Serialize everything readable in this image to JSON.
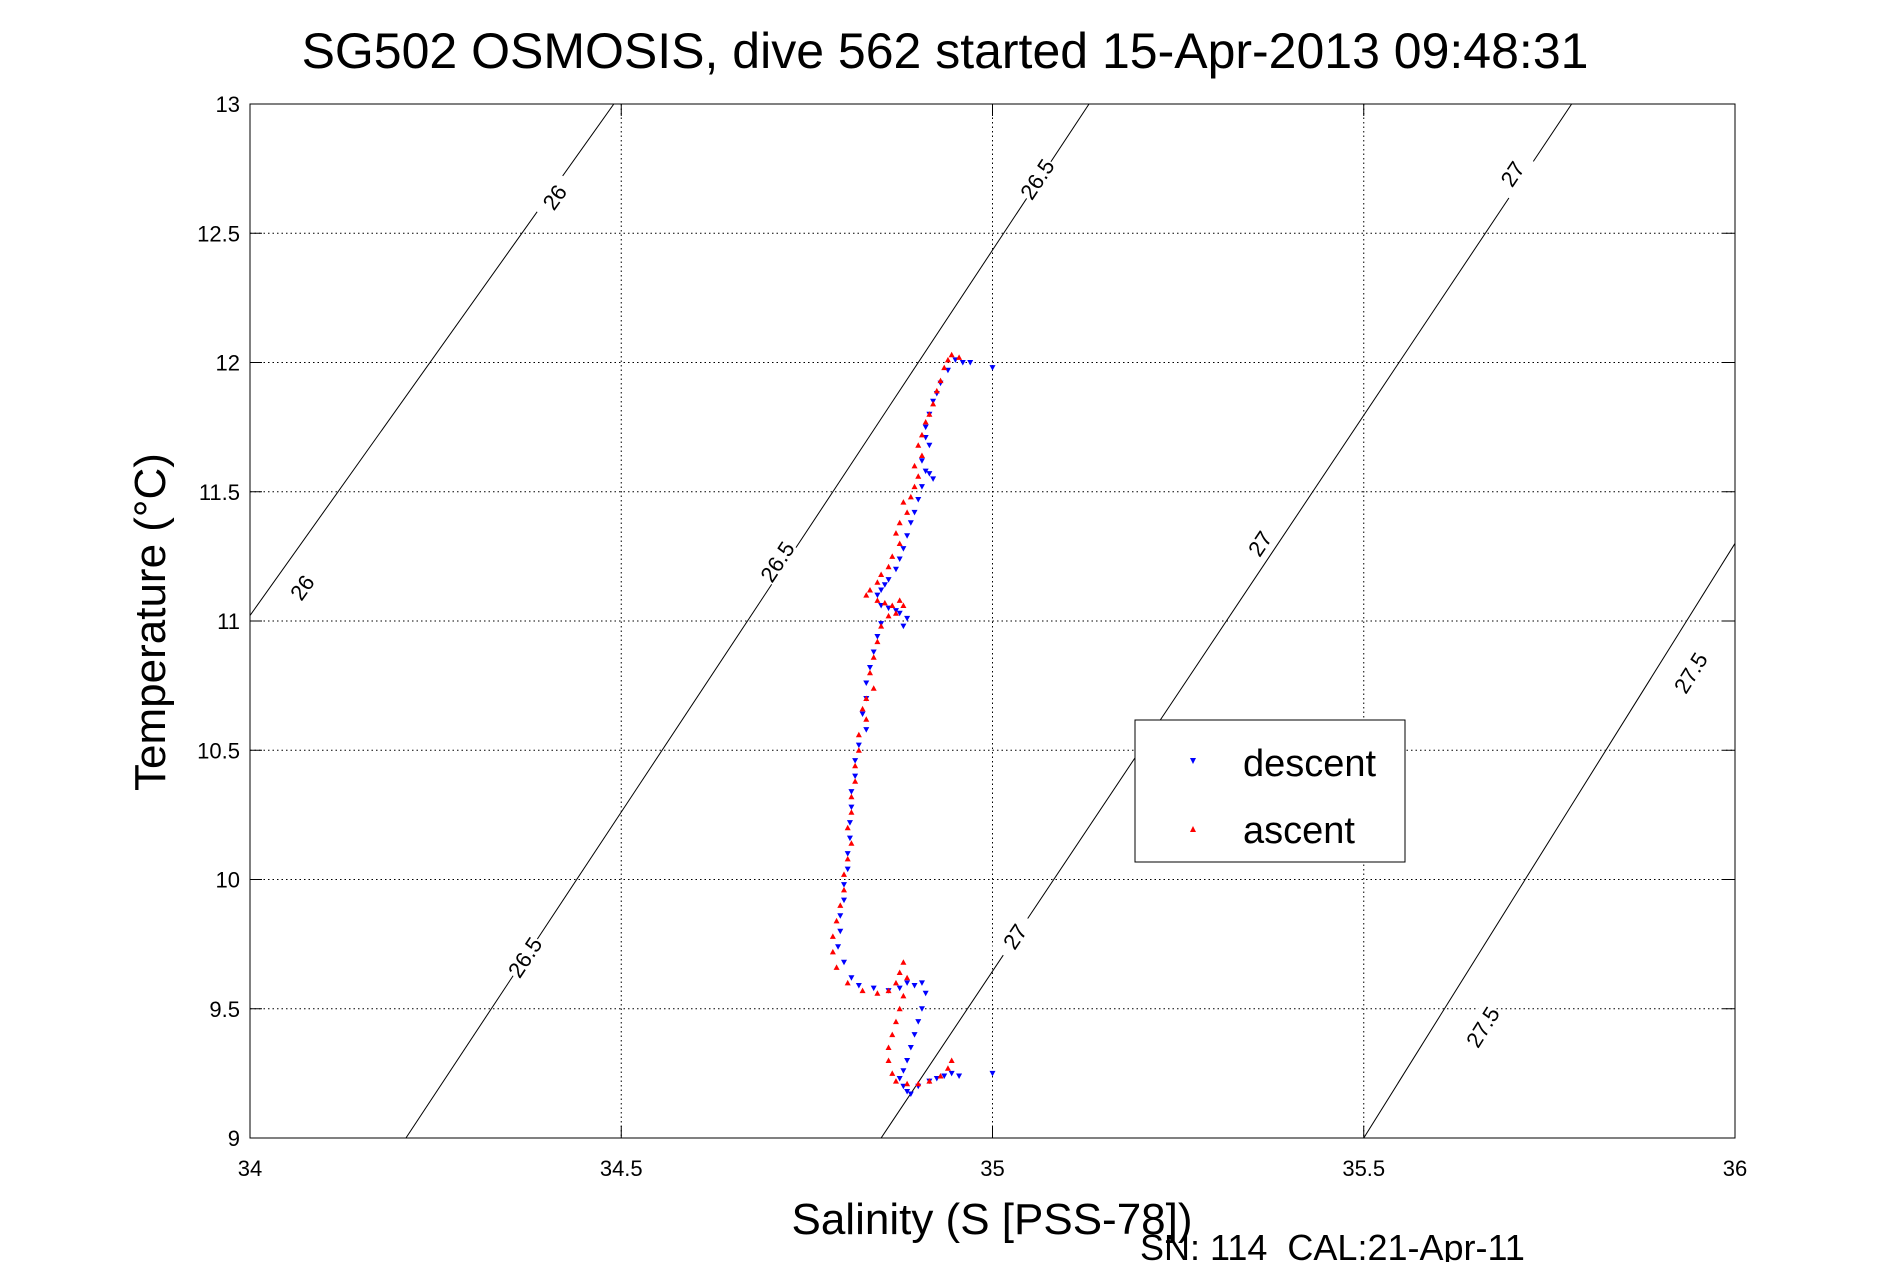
{
  "chart_data": {
    "type": "scatter",
    "title": "SG502 OSMOSIS, dive 562 started 15-Apr-2013 09:48:31",
    "xlabel": "Salinity (S [PSS-78])",
    "ylabel": "Temperature (°C)",
    "xlim": [
      34,
      36
    ],
    "ylim": [
      9,
      13
    ],
    "xticks": [
      34,
      34.5,
      35,
      35.5,
      36
    ],
    "xtick_labels": [
      "34",
      "34.5",
      "35",
      "35.5",
      "36"
    ],
    "yticks": [
      9,
      9.5,
      10,
      10.5,
      11,
      11.5,
      12,
      12.5,
      13
    ],
    "ytick_labels": [
      "9",
      "9.5",
      "10",
      "10.5",
      "11",
      "11.5",
      "12",
      "12.5",
      "13"
    ],
    "grid": true,
    "legend_position": "right-middle",
    "footer": "SN: 114  CAL:21-Apr-11",
    "density_contours": [
      {
        "level": "26",
        "points": [
          [
            33.97,
            10.9
          ],
          [
            34.49,
            13.0
          ]
        ],
        "labels": [
          {
            "text": "26",
            "at": [
              34.07,
              11.13
            ]
          },
          {
            "text": "26",
            "at": [
              34.41,
              12.64
            ]
          }
        ]
      },
      {
        "level": "26.5",
        "points": [
          [
            34.21,
            9.0
          ],
          [
            35.13,
            13.0
          ]
        ],
        "labels": [
          {
            "text": "26.5",
            "at": [
              34.37,
              9.7
            ]
          },
          {
            "text": "26.5",
            "at": [
              34.71,
              11.23
            ]
          },
          {
            "text": "26.5",
            "at": [
              35.06,
              12.71
            ]
          }
        ]
      },
      {
        "level": "27",
        "points": [
          [
            34.85,
            9.0
          ],
          [
            35.78,
            13.0
          ]
        ],
        "labels": [
          {
            "text": "27",
            "at": [
              35.03,
              9.78
            ]
          },
          {
            "text": "27",
            "at": [
              35.36,
              11.3
            ]
          },
          {
            "text": "27",
            "at": [
              35.7,
              12.73
            ]
          }
        ]
      },
      {
        "level": "27.5",
        "points": [
          [
            35.5,
            9.0
          ],
          [
            36.0,
            11.3
          ]
        ],
        "labels": [
          {
            "text": "27.5",
            "at": [
              35.66,
              9.43
            ]
          },
          {
            "text": "27.5",
            "at": [
              35.94,
              10.8
            ]
          }
        ]
      }
    ],
    "series": [
      {
        "name": "descent",
        "color": "#0000ff",
        "marker": "triangle-down",
        "points": [
          [
            34.95,
            12.01
          ],
          [
            34.96,
            12.0
          ],
          [
            34.97,
            12.0
          ],
          [
            35.0,
            11.98
          ],
          [
            34.94,
            11.97
          ],
          [
            34.93,
            11.92
          ],
          [
            34.925,
            11.88
          ],
          [
            34.92,
            11.85
          ],
          [
            34.915,
            11.8
          ],
          [
            34.91,
            11.75
          ],
          [
            34.91,
            11.71
          ],
          [
            34.915,
            11.68
          ],
          [
            34.905,
            11.62
          ],
          [
            34.91,
            11.58
          ],
          [
            34.915,
            11.57
          ],
          [
            34.92,
            11.55
          ],
          [
            34.905,
            11.52
          ],
          [
            34.9,
            11.47
          ],
          [
            34.895,
            11.42
          ],
          [
            34.89,
            11.38
          ],
          [
            34.885,
            11.33
          ],
          [
            34.88,
            11.28
          ],
          [
            34.875,
            11.24
          ],
          [
            34.87,
            11.2
          ],
          [
            34.86,
            11.16
          ],
          [
            34.855,
            11.14
          ],
          [
            34.85,
            11.12
          ],
          [
            34.845,
            11.1
          ],
          [
            34.85,
            11.06
          ],
          [
            34.86,
            11.05
          ],
          [
            34.87,
            11.04
          ],
          [
            34.875,
            11.03
          ],
          [
            34.885,
            11.01
          ],
          [
            34.88,
            10.98
          ],
          [
            34.85,
            10.99
          ],
          [
            34.845,
            10.94
          ],
          [
            34.84,
            10.88
          ],
          [
            34.835,
            10.82
          ],
          [
            34.83,
            10.76
          ],
          [
            34.83,
            10.7
          ],
          [
            34.825,
            10.64
          ],
          [
            34.83,
            10.58
          ],
          [
            34.82,
            10.52
          ],
          [
            34.815,
            10.46
          ],
          [
            34.815,
            10.4
          ],
          [
            34.81,
            10.34
          ],
          [
            34.81,
            10.28
          ],
          [
            34.808,
            10.22
          ],
          [
            34.808,
            10.16
          ],
          [
            34.805,
            10.1
          ],
          [
            34.805,
            10.04
          ],
          [
            34.8,
            9.98
          ],
          [
            34.8,
            9.92
          ],
          [
            34.795,
            9.86
          ],
          [
            34.795,
            9.8
          ],
          [
            34.792,
            9.74
          ],
          [
            34.8,
            9.68
          ],
          [
            34.81,
            9.62
          ],
          [
            34.82,
            9.59
          ],
          [
            34.84,
            9.58
          ],
          [
            34.86,
            9.57
          ],
          [
            34.875,
            9.58
          ],
          [
            34.885,
            9.6
          ],
          [
            34.895,
            9.59
          ],
          [
            34.905,
            9.6
          ],
          [
            34.91,
            9.56
          ],
          [
            34.905,
            9.5
          ],
          [
            34.9,
            9.45
          ],
          [
            34.895,
            9.4
          ],
          [
            34.89,
            9.35
          ],
          [
            34.885,
            9.3
          ],
          [
            34.88,
            9.26
          ],
          [
            34.875,
            9.23
          ],
          [
            34.88,
            9.2
          ],
          [
            34.885,
            9.18
          ],
          [
            34.89,
            9.17
          ],
          [
            34.9,
            9.2
          ],
          [
            34.915,
            9.22
          ],
          [
            34.925,
            9.23
          ],
          [
            34.935,
            9.24
          ],
          [
            34.945,
            9.25
          ],
          [
            34.955,
            9.24
          ],
          [
            35.0,
            9.25
          ]
        ]
      },
      {
        "name": "ascent",
        "color": "#ff0000",
        "marker": "triangle-up",
        "points": [
          [
            34.955,
            12.02
          ],
          [
            34.945,
            12.03
          ],
          [
            34.94,
            12.01
          ],
          [
            34.935,
            11.98
          ],
          [
            34.93,
            11.93
          ],
          [
            34.925,
            11.89
          ],
          [
            34.92,
            11.84
          ],
          [
            34.915,
            11.8
          ],
          [
            34.91,
            11.77
          ],
          [
            34.905,
            11.72
          ],
          [
            34.9,
            11.68
          ],
          [
            34.905,
            11.64
          ],
          [
            34.895,
            11.6
          ],
          [
            34.9,
            11.56
          ],
          [
            34.895,
            11.52
          ],
          [
            34.89,
            11.48
          ],
          [
            34.88,
            11.46
          ],
          [
            34.885,
            11.42
          ],
          [
            34.875,
            11.38
          ],
          [
            34.87,
            11.34
          ],
          [
            34.875,
            11.3
          ],
          [
            34.865,
            11.25
          ],
          [
            34.86,
            11.21
          ],
          [
            34.85,
            11.18
          ],
          [
            34.845,
            11.15
          ],
          [
            34.835,
            11.12
          ],
          [
            34.83,
            11.1
          ],
          [
            34.845,
            11.08
          ],
          [
            34.855,
            11.07
          ],
          [
            34.865,
            11.06
          ],
          [
            34.875,
            11.08
          ],
          [
            34.88,
            11.06
          ],
          [
            34.87,
            11.03
          ],
          [
            34.86,
            11.02
          ],
          [
            34.85,
            10.98
          ],
          [
            34.845,
            10.92
          ],
          [
            34.84,
            10.86
          ],
          [
            34.835,
            10.8
          ],
          [
            34.84,
            10.74
          ],
          [
            34.83,
            10.7
          ],
          [
            34.825,
            10.66
          ],
          [
            34.83,
            10.62
          ],
          [
            34.82,
            10.56
          ],
          [
            34.82,
            10.5
          ],
          [
            34.815,
            10.44
          ],
          [
            34.815,
            10.38
          ],
          [
            34.81,
            10.32
          ],
          [
            34.81,
            10.26
          ],
          [
            34.805,
            10.2
          ],
          [
            34.81,
            10.14
          ],
          [
            34.805,
            10.08
          ],
          [
            34.8,
            10.02
          ],
          [
            34.8,
            9.96
          ],
          [
            34.795,
            9.9
          ],
          [
            34.79,
            9.84
          ],
          [
            34.785,
            9.78
          ],
          [
            34.785,
            9.72
          ],
          [
            34.79,
            9.66
          ],
          [
            34.805,
            9.6
          ],
          [
            34.825,
            9.57
          ],
          [
            34.845,
            9.56
          ],
          [
            34.86,
            9.57
          ],
          [
            34.87,
            9.6
          ],
          [
            34.875,
            9.64
          ],
          [
            34.88,
            9.68
          ],
          [
            34.885,
            9.62
          ],
          [
            34.88,
            9.55
          ],
          [
            34.875,
            9.5
          ],
          [
            34.87,
            9.45
          ],
          [
            34.865,
            9.4
          ],
          [
            34.86,
            9.35
          ],
          [
            34.86,
            9.3
          ],
          [
            34.865,
            9.25
          ],
          [
            34.87,
            9.22
          ],
          [
            34.885,
            9.21
          ],
          [
            34.9,
            9.21
          ],
          [
            34.915,
            9.22
          ],
          [
            34.93,
            9.24
          ],
          [
            34.94,
            9.27
          ],
          [
            34.945,
            9.3
          ]
        ]
      }
    ]
  }
}
